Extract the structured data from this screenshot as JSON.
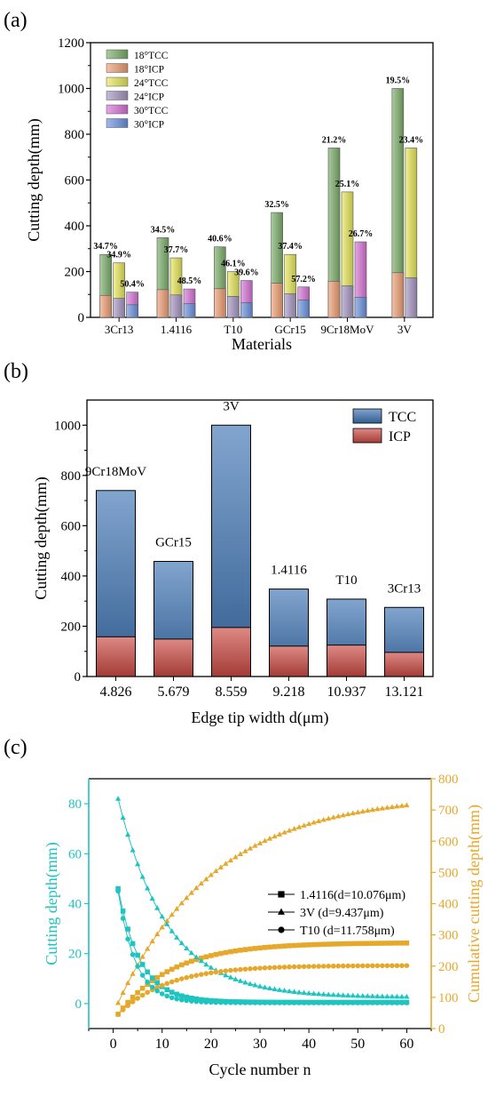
{
  "panels": {
    "a": "(a)",
    "b": "(b)",
    "c": "(c)"
  },
  "chart_data": [
    {
      "type": "bar",
      "panel": "(a)",
      "xlabel": "Materials",
      "ylabel": "Cutting depth(mm)",
      "ylim": [
        0,
        1200
      ],
      "yticks": [
        0,
        200,
        400,
        600,
        800,
        1000,
        1200
      ],
      "categories": [
        "3Cr13",
        "1.4116",
        "T10",
        "GCr15",
        "9Cr18MoV",
        "3V"
      ],
      "series": [
        {
          "name": "18°TCC",
          "color": "#7daf6c",
          "values": [
            275,
            348,
            308,
            458,
            740,
            1000
          ]
        },
        {
          "name": "18°ICP",
          "color": "#f0a074",
          "values": [
            96,
            121,
            125,
            149,
            158,
            195
          ]
        },
        {
          "name": "24°TCC",
          "color": "#e8e85a",
          "values": [
            238,
            260,
            200,
            275,
            548,
            740
          ]
        },
        {
          "name": "24°ICP",
          "color": "#a797c4",
          "values": [
            83,
            98,
            92,
            103,
            138,
            173
          ]
        },
        {
          "name": "30°TCC",
          "color": "#d876d8",
          "values": [
            110,
            124,
            161,
            133,
            330,
            null
          ]
        },
        {
          "name": "30°ICP",
          "color": "#6b93e0",
          "values": [
            55,
            60,
            64,
            76,
            88,
            null
          ]
        }
      ],
      "ratio_labels": [
        [
          "34.7%",
          "34.9%",
          "50.4%"
        ],
        [
          "34.5%",
          "37.7%",
          "48.5%"
        ],
        [
          "40.6%",
          "46.1%",
          "39.6%"
        ],
        [
          "32.5%",
          "37.4%",
          "57.2%"
        ],
        [
          "21.2%",
          "25.1%",
          "26.7%"
        ],
        [
          "19.5%",
          "23.4%",
          null
        ]
      ],
      "legend_position": "top-left"
    },
    {
      "type": "bar",
      "panel": "(b)",
      "xlabel": "Edge tip width d(μm)",
      "ylabel": "Cutting depth(mm)",
      "ylim": [
        0,
        1100
      ],
      "yticks": [
        0,
        200,
        400,
        600,
        800,
        1000
      ],
      "categories": [
        "4.826",
        "5.679",
        "8.559",
        "9.218",
        "10.937",
        "13.121"
      ],
      "bar_labels": [
        "9Cr18MoV",
        "GCr15",
        "3V",
        "1.4116",
        "T10",
        "3Cr13"
      ],
      "series": [
        {
          "name": "TCC",
          "color": "#3f74b4",
          "values": [
            740,
            458,
            1000,
            348,
            308,
            275
          ]
        },
        {
          "name": "ICP",
          "color": "#cc4a44",
          "values": [
            158,
            149,
            195,
            121,
            125,
            96
          ]
        }
      ],
      "legend_position": "top-right"
    },
    {
      "type": "line",
      "panel": "(c)",
      "xlabel": "Cycle number n",
      "ylabel": "Cutting depth(mm)",
      "y2label": "Cumulative cutting depth(mm)",
      "xlim": [
        -5,
        65
      ],
      "xticks": [
        0,
        10,
        20,
        30,
        40,
        50,
        60
      ],
      "ylim": [
        -10,
        90
      ],
      "yticks": [
        0,
        20,
        40,
        60,
        80
      ],
      "y2lim": [
        0,
        800
      ],
      "y2ticks": [
        0,
        100,
        200,
        300,
        400,
        500,
        600,
        700,
        800
      ],
      "left_color": "#1ec4c0",
      "right_color": "#e6a82a",
      "series": [
        {
          "name": "1.4116(d=10.076μm)",
          "marker": "square",
          "per_cycle": {
            "first": 46,
            "final": 0.5,
            "k": 0.22
          },
          "cumulative": {
            "start": 46,
            "final": 275,
            "k": 0.09
          }
        },
        {
          "name": "3V   (d=9.437μm)",
          "marker": "triangle",
          "per_cycle": {
            "first": 82,
            "final": 2.5,
            "k": 0.1
          },
          "cumulative": {
            "start": 82,
            "final": 750,
            "k": 0.05
          }
        },
        {
          "name": "T10   (d=11.758μm)",
          "marker": "circle",
          "per_cycle": {
            "first": 45,
            "final": 0.3,
            "k": 0.28
          },
          "cumulative": {
            "start": 45,
            "final": 202,
            "k": 0.1
          }
        }
      ],
      "n_points": 60,
      "legend_position": "center-right"
    }
  ]
}
